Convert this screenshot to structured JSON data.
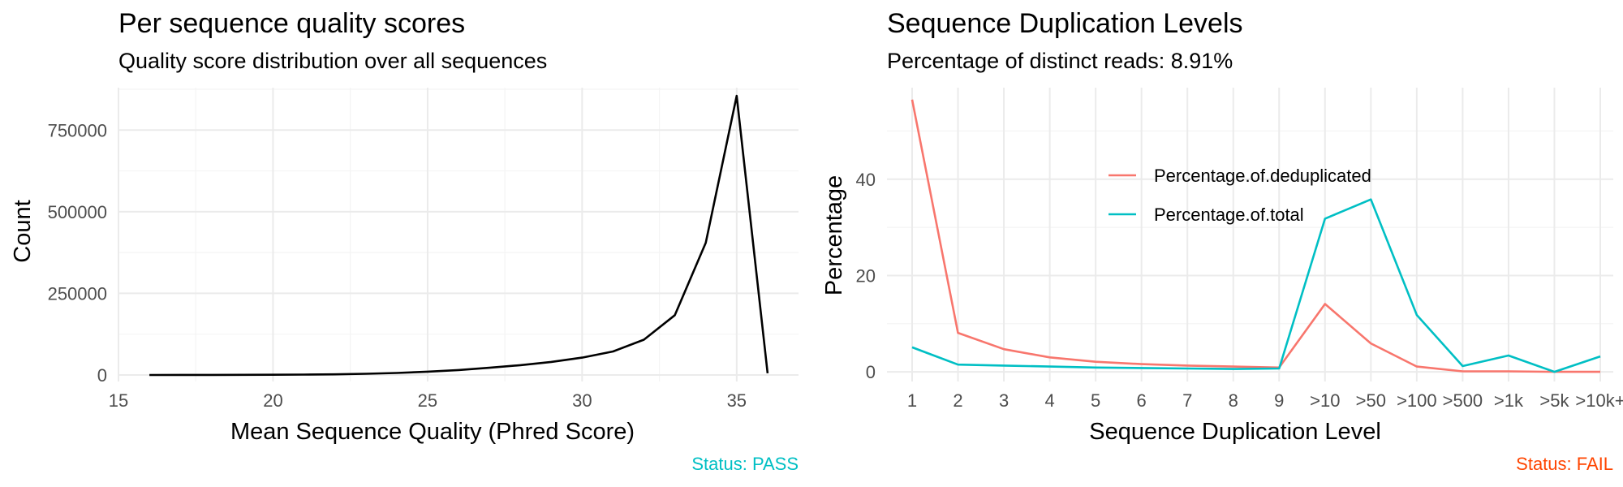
{
  "chart_data": [
    {
      "type": "line",
      "title": "Per sequence quality scores",
      "subtitle": "Quality score distribution over all sequences",
      "xlabel": "Mean Sequence Quality (Phred Score)",
      "ylabel": "Count",
      "xlim": [
        15,
        37
      ],
      "ylim": [
        -20000,
        880000
      ],
      "x_ticks": [
        15,
        20,
        25,
        30,
        35
      ],
      "y_ticks": [
        0,
        250000,
        500000,
        750000
      ],
      "grid": true,
      "series": [
        {
          "color": "#000000",
          "x": [
            16,
            17,
            18,
            19,
            20,
            21,
            22,
            23,
            24,
            25,
            26,
            27,
            28,
            29,
            30,
            31,
            32,
            33,
            34,
            35,
            36
          ],
          "y": [
            0,
            100,
            200,
            400,
            700,
            1200,
            2000,
            3500,
            6000,
            10000,
            15000,
            22000,
            30000,
            40000,
            53000,
            72000,
            108000,
            183000,
            405000,
            855000,
            5000
          ]
        }
      ],
      "status": "Status: PASS",
      "status_color": "#00bfc4"
    },
    {
      "type": "line",
      "title": "Sequence Duplication Levels",
      "subtitle": "Percentage of distinct reads: 8.91%",
      "xlabel": "Sequence Duplication Level",
      "ylabel": "Percentage",
      "categories": [
        "1",
        "2",
        "3",
        "4",
        "5",
        "6",
        "7",
        "8",
        "9",
        ">10",
        ">50",
        ">100",
        ">500",
        ">1k",
        ">5k",
        ">10k+"
      ],
      "ylim": [
        -2,
        59
      ],
      "y_ticks": [
        0,
        20,
        40
      ],
      "grid": true,
      "legend_position": "inside-top-center",
      "series": [
        {
          "name": "Percentage.of.deduplicated",
          "color": "#f8766d",
          "values": [
            56.5,
            8.1,
            4.7,
            3.0,
            2.1,
            1.6,
            1.3,
            1.1,
            0.9,
            14.1,
            5.9,
            1.1,
            0.1,
            0.1,
            0.0,
            0.0
          ]
        },
        {
          "name": "Percentage.of.total",
          "color": "#00bfc4",
          "values": [
            5.1,
            1.5,
            1.3,
            1.1,
            0.9,
            0.8,
            0.7,
            0.6,
            0.7,
            31.8,
            35.8,
            11.8,
            1.2,
            3.4,
            0.0,
            3.2
          ]
        }
      ],
      "status": "Status: FAIL",
      "status_color": "#ff4500"
    }
  ]
}
